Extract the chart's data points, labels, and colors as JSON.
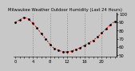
{
  "title": "Milwaukee Weather Outdoor Humidity (Last 24 Hours)",
  "background_color": "#c8c8c8",
  "plot_bg_color": "#c8c8c8",
  "grid_color": "#888888",
  "line_color": "#dd0000",
  "marker_color": "#000000",
  "y_values": [
    90,
    93,
    96,
    94,
    89,
    83,
    76,
    70,
    63,
    58,
    56,
    54,
    54,
    55,
    57,
    59,
    62,
    65,
    68,
    72,
    77,
    82,
    87,
    91
  ],
  "ylim": [
    48,
    102
  ],
  "yticks": [
    50,
    60,
    70,
    80,
    90,
    100
  ],
  "ylabel_fontsize": 3.8,
  "title_fontsize": 3.8,
  "num_points": 24,
  "vgrid_positions": [
    4,
    8,
    12,
    16,
    20
  ],
  "marker_size": 2.0,
  "line_width": 0.7,
  "dpi": 100
}
